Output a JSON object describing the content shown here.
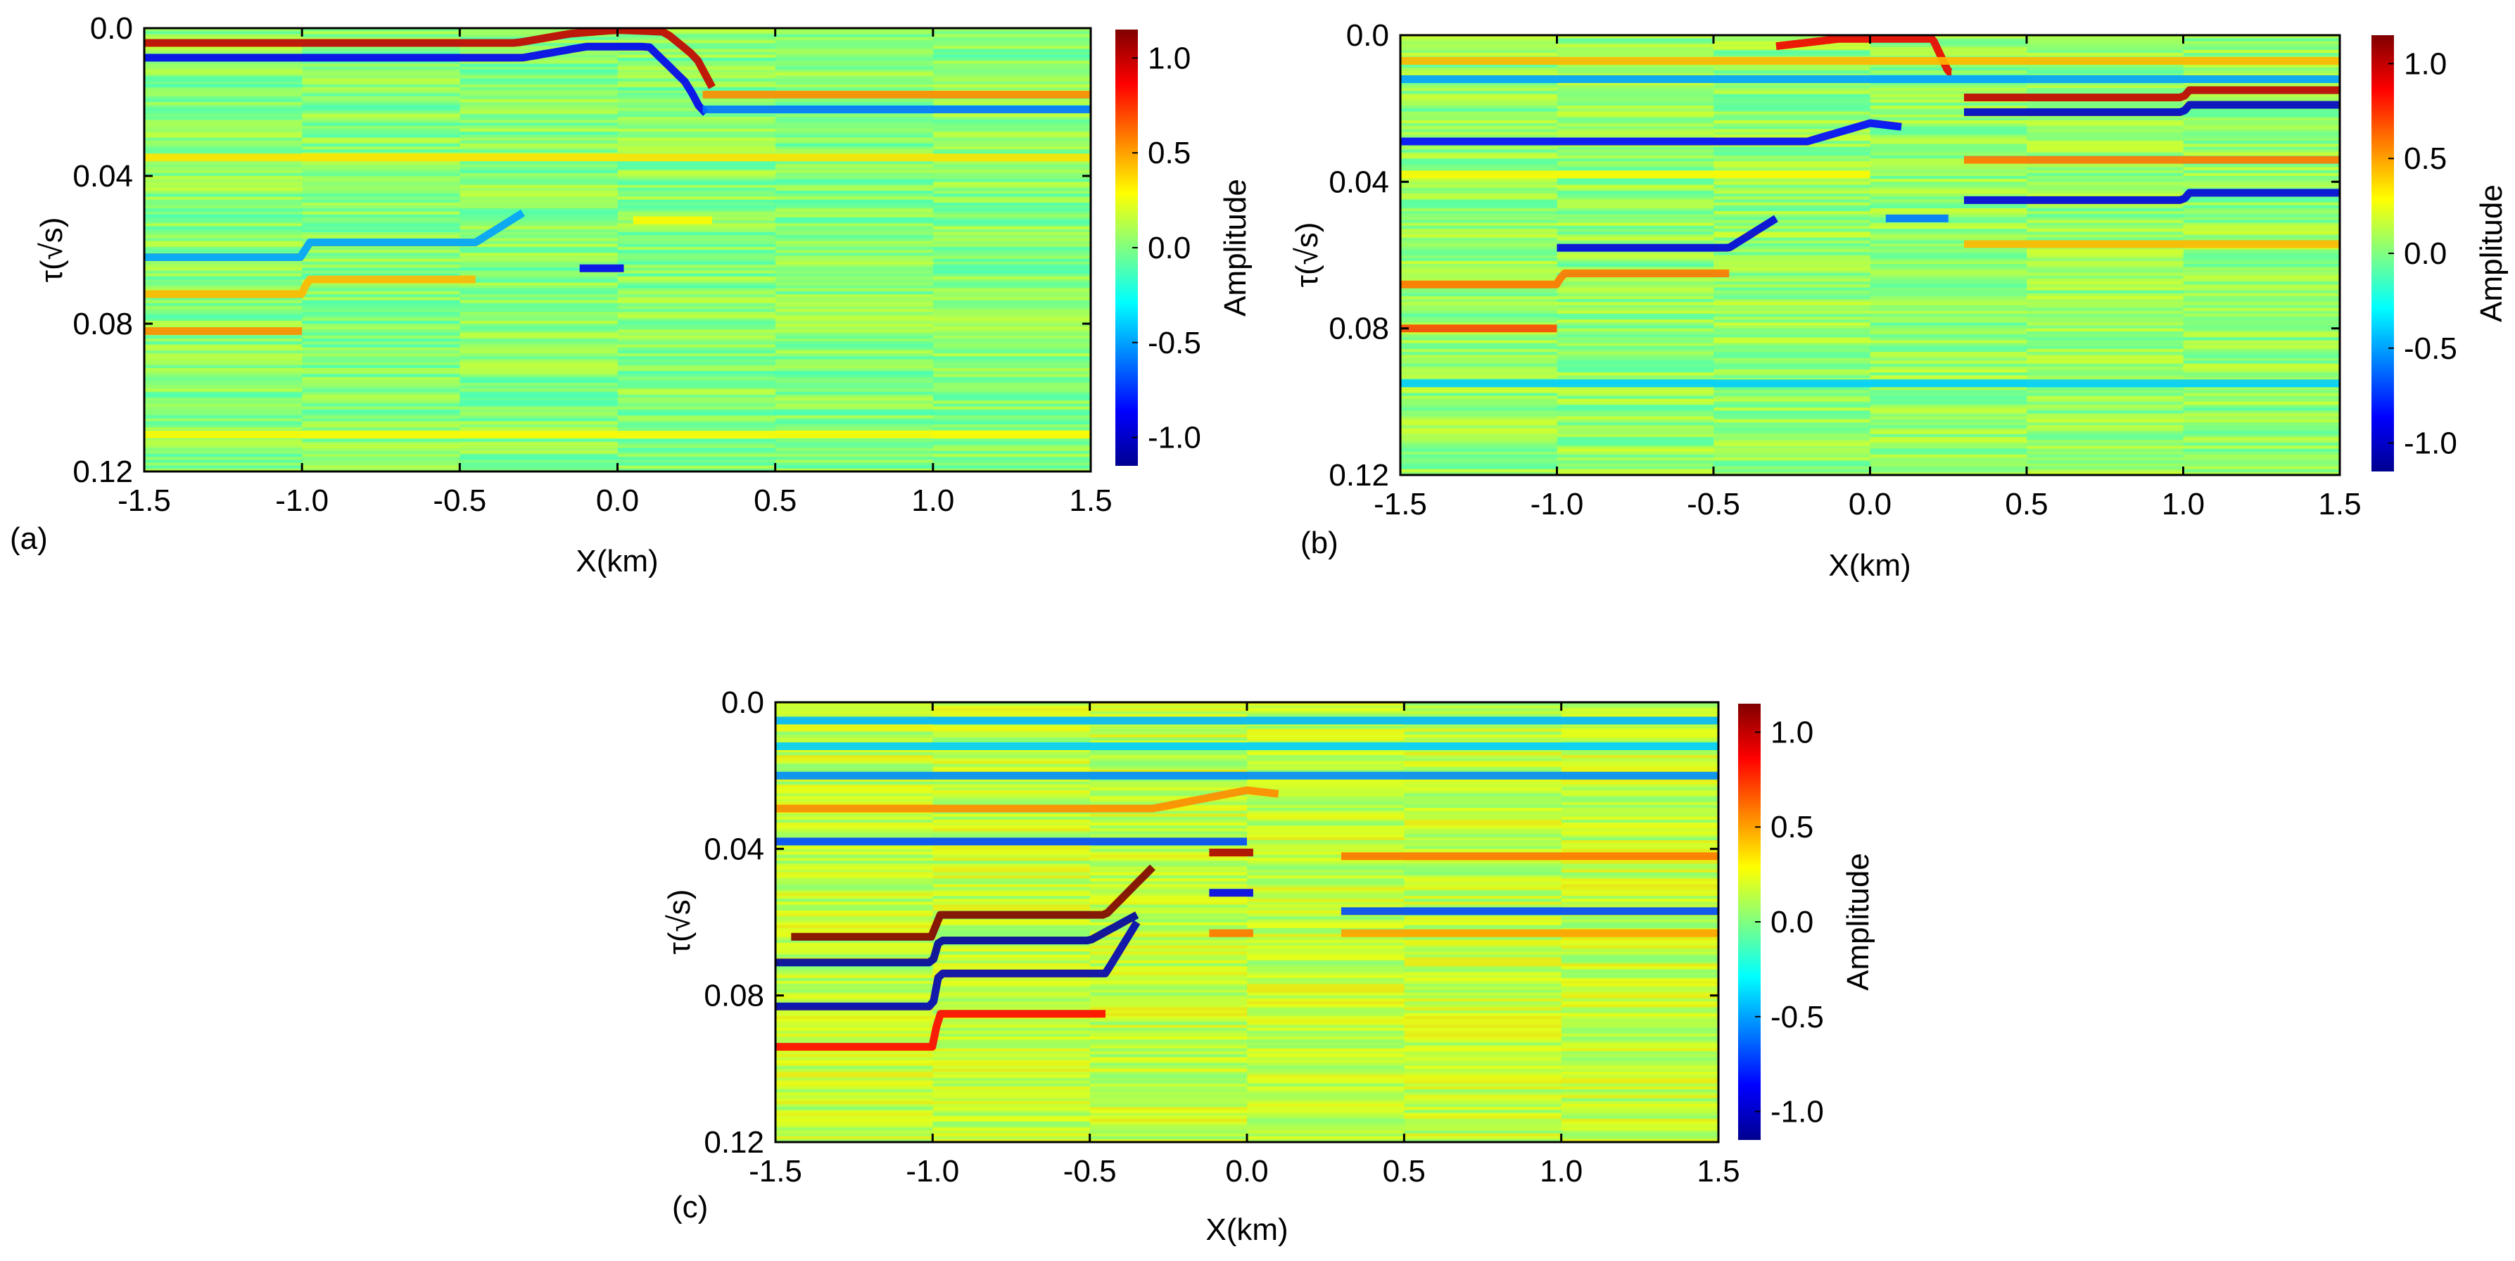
{
  "colormap": {
    "name": "jet",
    "stops": [
      "#00008f",
      "#0000ff",
      "#0080ff",
      "#00ffff",
      "#80ff80",
      "#ffff00",
      "#ff8000",
      "#ff0000",
      "#800000"
    ]
  },
  "chart_data": [
    {
      "type": "heatmap",
      "panel_label": "(a)",
      "xlabel": "X(km)",
      "ylabel": "τ(√s)",
      "xlim": [
        -1.5,
        1.5
      ],
      "ylim": [
        0.12,
        0.0
      ],
      "x_ticks": [
        "-1.5",
        "-1.0",
        "-0.5",
        "0.0",
        "0.5",
        "1.0",
        "1.5"
      ],
      "x_tick_values": [
        -1.5,
        -1.0,
        -0.5,
        0.0,
        0.5,
        1.0,
        1.5
      ],
      "y_ticks": [
        "0.0",
        "0.04",
        "0.08",
        "0.12"
      ],
      "y_tick_values": [
        0.0,
        0.04,
        0.08,
        0.12
      ],
      "colorbar": {
        "label": "Amplitude",
        "ticks": [
          "1.0",
          "0.5",
          "0.0",
          "-0.5",
          "-1.0"
        ],
        "tick_values": [
          1.0,
          0.5,
          0.0,
          -0.5,
          -1.0
        ],
        "range": [
          -1.15,
          1.15
        ]
      },
      "background_amplitude": 0.02,
      "events": [
        {
          "amp": 1.0,
          "tau": [
            [
              -1.5,
              0.004
            ],
            [
              -0.32,
              0.004
            ],
            [
              -0.15,
              0.0015
            ],
            [
              0.0,
              0.0005
            ],
            [
              0.15,
              0.001
            ],
            [
              0.25,
              0.008
            ],
            [
              0.3,
              0.016
            ]
          ],
          "x": [
            -1.5,
            0.3
          ]
        },
        {
          "amp": -0.9,
          "tau": [
            [
              -1.5,
              0.008
            ],
            [
              -0.3,
              0.008
            ],
            [
              -0.1,
              0.005
            ],
            [
              0.1,
              0.005
            ],
            [
              0.22,
              0.015
            ],
            [
              0.27,
              0.023
            ]
          ],
          "x": [
            -1.5,
            0.28
          ]
        },
        {
          "amp": 0.55,
          "tau": [
            [
              0.27,
              0.018
            ],
            [
              1.5,
              0.018
            ]
          ],
          "x": [
            0.27,
            1.5
          ]
        },
        {
          "amp": -0.6,
          "tau": [
            [
              0.27,
              0.022
            ],
            [
              1.5,
              0.022
            ]
          ],
          "x": [
            0.27,
            1.5
          ]
        },
        {
          "amp": 0.35,
          "tau": [
            [
              -1.5,
              0.035
            ],
            [
              1.5,
              0.035
            ]
          ],
          "x": [
            -1.5,
            1.5
          ]
        },
        {
          "amp": -0.9,
          "tau": [
            [
              -0.1,
              0.065
            ],
            [
              0.0,
              0.065
            ]
          ],
          "x": [
            -0.12,
            0.02
          ]
        },
        {
          "amp": -0.5,
          "tau": [
            [
              -1.5,
              0.062
            ],
            [
              -1.0,
              0.062
            ],
            [
              -0.98,
              0.058
            ],
            [
              -0.45,
              0.058
            ],
            [
              -0.3,
              0.05
            ]
          ],
          "x": [
            -1.5,
            -0.3
          ]
        },
        {
          "amp": 0.45,
          "tau": [
            [
              -1.5,
              0.072
            ],
            [
              -1.0,
              0.072
            ],
            [
              -0.98,
              0.068
            ],
            [
              -0.45,
              0.068
            ]
          ],
          "x": [
            -1.5,
            -0.45
          ]
        },
        {
          "amp": 0.55,
          "tau": [
            [
              -1.5,
              0.082
            ],
            [
              -1.0,
              0.082
            ]
          ],
          "x": [
            -1.5,
            -1.0
          ]
        },
        {
          "amp": 0.3,
          "tau": [
            [
              0.05,
              0.052
            ],
            [
              0.3,
              0.052
            ]
          ],
          "x": [
            0.05,
            0.3
          ]
        },
        {
          "amp": 0.3,
          "tau": [
            [
              -1.5,
              0.11
            ],
            [
              1.5,
              0.11
            ]
          ],
          "x": [
            -1.5,
            1.5
          ]
        }
      ]
    },
    {
      "type": "heatmap",
      "panel_label": "(b)",
      "xlabel": "X(km)",
      "ylabel": "τ(√s)",
      "xlim": [
        -1.5,
        1.5
      ],
      "ylim": [
        0.12,
        0.0
      ],
      "x_ticks": [
        "-1.5",
        "-1.0",
        "-0.5",
        "0.0",
        "0.5",
        "1.0",
        "1.5"
      ],
      "x_tick_values": [
        -1.5,
        -1.0,
        -0.5,
        0.0,
        0.5,
        1.0,
        1.5
      ],
      "y_ticks": [
        "0.0",
        "0.04",
        "0.08",
        "0.12"
      ],
      "y_tick_values": [
        0.0,
        0.04,
        0.08,
        0.12
      ],
      "colorbar": {
        "label": "Amplitude",
        "ticks": [
          "1.0",
          "0.5",
          "0.0",
          "-0.5",
          "-1.0"
        ],
        "tick_values": [
          1.0,
          0.5,
          0.0,
          -0.5,
          -1.0
        ],
        "range": [
          -1.15,
          1.15
        ]
      },
      "background_amplitude": 0.05,
      "events": [
        {
          "amp": 0.9,
          "tau": [
            [
              -0.3,
              0.003
            ],
            [
              -0.1,
              0.001
            ],
            [
              0.2,
              0.001
            ],
            [
              0.25,
              0.01
            ]
          ],
          "x": [
            -0.3,
            0.26
          ]
        },
        {
          "amp": 0.45,
          "tau": [
            [
              -1.5,
              0.007
            ],
            [
              1.5,
              0.007
            ]
          ],
          "x": [
            -1.5,
            1.5
          ]
        },
        {
          "amp": -0.5,
          "tau": [
            [
              -1.5,
              0.012
            ],
            [
              1.5,
              0.012
            ]
          ],
          "x": [
            -1.5,
            1.5
          ]
        },
        {
          "amp": 1.0,
          "tau": [
            [
              0.3,
              0.017
            ],
            [
              1.0,
              0.017
            ],
            [
              1.02,
              0.015
            ],
            [
              1.5,
              0.015
            ]
          ],
          "x": [
            0.3,
            1.5
          ]
        },
        {
          "amp": -1.0,
          "tau": [
            [
              0.3,
              0.021
            ],
            [
              1.0,
              0.021
            ],
            [
              1.02,
              0.019
            ],
            [
              1.5,
              0.019
            ]
          ],
          "x": [
            0.3,
            1.5
          ]
        },
        {
          "amp": -0.85,
          "tau": [
            [
              -1.5,
              0.029
            ],
            [
              -0.2,
              0.029
            ],
            [
              0.0,
              0.024
            ],
            [
              0.2,
              0.026
            ]
          ],
          "x": [
            -1.5,
            0.1
          ]
        },
        {
          "amp": 0.6,
          "tau": [
            [
              0.3,
              0.034
            ],
            [
              1.5,
              0.034
            ]
          ],
          "x": [
            0.3,
            1.5
          ]
        },
        {
          "amp": 0.3,
          "tau": [
            [
              -1.5,
              0.038
            ],
            [
              0.0,
              0.038
            ]
          ],
          "x": [
            -1.5,
            0.0
          ]
        },
        {
          "amp": -0.95,
          "tau": [
            [
              0.3,
              0.045
            ],
            [
              1.0,
              0.045
            ],
            [
              1.02,
              0.043
            ],
            [
              1.5,
              0.043
            ]
          ],
          "x": [
            0.3,
            1.5
          ]
        },
        {
          "amp": -0.95,
          "tau": [
            [
              -1.0,
              0.058
            ],
            [
              -0.45,
              0.058
            ],
            [
              -0.3,
              0.05
            ]
          ],
          "x": [
            -1.0,
            -0.3
          ]
        },
        {
          "amp": 0.6,
          "tau": [
            [
              -1.5,
              0.068
            ],
            [
              -1.0,
              0.068
            ],
            [
              -0.98,
              0.065
            ],
            [
              -0.45,
              0.065
            ]
          ],
          "x": [
            -1.5,
            -0.45
          ]
        },
        {
          "amp": 0.7,
          "tau": [
            [
              -1.5,
              0.08
            ],
            [
              -1.0,
              0.08
            ]
          ],
          "x": [
            -1.5,
            -1.0
          ]
        },
        {
          "amp": -0.6,
          "tau": [
            [
              0.05,
              0.05
            ],
            [
              0.25,
              0.05
            ]
          ],
          "x": [
            0.05,
            0.25
          ]
        },
        {
          "amp": 0.45,
          "tau": [
            [
              0.3,
              0.057
            ],
            [
              1.5,
              0.057
            ]
          ],
          "x": [
            0.3,
            1.5
          ]
        },
        {
          "amp": -0.4,
          "tau": [
            [
              -1.5,
              0.095
            ],
            [
              1.5,
              0.095
            ]
          ],
          "x": [
            -1.5,
            1.5
          ]
        }
      ]
    },
    {
      "type": "heatmap",
      "panel_label": "(c)",
      "xlabel": "X(km)",
      "ylabel": "τ(√s)",
      "xlim": [
        -1.5,
        1.5
      ],
      "ylim": [
        0.12,
        0.0
      ],
      "x_ticks": [
        "-1.5",
        "-1.0",
        "-0.5",
        "0.0",
        "0.5",
        "1.0",
        "1.5"
      ],
      "x_tick_values": [
        -1.5,
        -1.0,
        -0.5,
        0.0,
        0.5,
        1.0,
        1.5
      ],
      "y_ticks": [
        "0.0",
        "0.04",
        "0.08",
        "0.12"
      ],
      "y_tick_values": [
        0.0,
        0.04,
        0.08,
        0.12
      ],
      "colorbar": {
        "label": "Amplitude",
        "ticks": [
          "1.0",
          "0.5",
          "0.0",
          "-0.5",
          "-1.0"
        ],
        "tick_values": [
          1.0,
          0.5,
          0.0,
          -0.5,
          -1.0
        ],
        "range": [
          -1.15,
          1.15
        ]
      },
      "background_amplitude": 0.15,
      "events": [
        {
          "amp": -0.45,
          "tau": [
            [
              -1.5,
              0.005
            ],
            [
              1.5,
              0.005
            ]
          ],
          "x": [
            -1.5,
            1.5
          ]
        },
        {
          "amp": -0.4,
          "tau": [
            [
              -1.5,
              0.012
            ],
            [
              1.5,
              0.012
            ]
          ],
          "x": [
            -1.5,
            1.5
          ]
        },
        {
          "amp": -0.55,
          "tau": [
            [
              -1.5,
              0.02
            ],
            [
              1.5,
              0.02
            ]
          ],
          "x": [
            -1.5,
            1.5
          ]
        },
        {
          "amp": 0.55,
          "tau": [
            [
              -1.5,
              0.029
            ],
            [
              -0.3,
              0.029
            ],
            [
              0.0,
              0.024
            ],
            [
              0.2,
              0.026
            ]
          ],
          "x": [
            -1.5,
            0.1
          ]
        },
        {
          "amp": -0.7,
          "tau": [
            [
              -1.5,
              0.038
            ],
            [
              0.0,
              0.038
            ]
          ],
          "x": [
            -1.5,
            0.0
          ]
        },
        {
          "amp": 0.6,
          "tau": [
            [
              0.3,
              0.042
            ],
            [
              1.5,
              0.042
            ]
          ],
          "x": [
            0.3,
            1.5
          ]
        },
        {
          "amp": 1.05,
          "tau": [
            [
              -0.1,
              0.041
            ],
            [
              0.0,
              0.041
            ]
          ],
          "x": [
            -0.12,
            0.02
          ]
        },
        {
          "amp": -0.9,
          "tau": [
            [
              -0.1,
              0.052
            ],
            [
              0.0,
              0.052
            ]
          ],
          "x": [
            -0.12,
            0.02
          ]
        },
        {
          "amp": -0.7,
          "tau": [
            [
              0.3,
              0.057
            ],
            [
              1.5,
              0.057
            ]
          ],
          "x": [
            0.3,
            1.5
          ]
        },
        {
          "amp": 0.5,
          "tau": [
            [
              0.3,
              0.063
            ],
            [
              1.5,
              0.063
            ]
          ],
          "x": [
            0.3,
            1.5
          ]
        },
        {
          "amp": 1.15,
          "tau": [
            [
              -1.45,
              0.064
            ],
            [
              -1.0,
              0.064
            ],
            [
              -0.98,
              0.058
            ],
            [
              -0.45,
              0.058
            ],
            [
              -0.3,
              0.045
            ]
          ],
          "x": [
            -1.45,
            -0.3
          ]
        },
        {
          "amp": -1.1,
          "tau": [
            [
              -1.5,
              0.071
            ],
            [
              -1.0,
              0.071
            ],
            [
              -0.98,
              0.065
            ],
            [
              -0.5,
              0.065
            ],
            [
              -0.35,
              0.058
            ]
          ],
          "x": [
            -1.5,
            -0.35
          ]
        },
        {
          "amp": -1.05,
          "tau": [
            [
              -1.5,
              0.083
            ],
            [
              -1.0,
              0.083
            ],
            [
              -0.98,
              0.074
            ],
            [
              -0.45,
              0.074
            ],
            [
              -0.35,
              0.06
            ]
          ],
          "x": [
            -1.5,
            -0.35
          ]
        },
        {
          "amp": 0.85,
          "tau": [
            [
              -1.5,
              0.094
            ],
            [
              -1.0,
              0.094
            ],
            [
              -0.98,
              0.085
            ],
            [
              -0.45,
              0.085
            ]
          ],
          "x": [
            -1.5,
            -0.45
          ]
        },
        {
          "amp": 0.6,
          "tau": [
            [
              -0.1,
              0.063
            ],
            [
              0.0,
              0.063
            ]
          ],
          "x": [
            -0.12,
            0.02
          ]
        }
      ]
    }
  ]
}
